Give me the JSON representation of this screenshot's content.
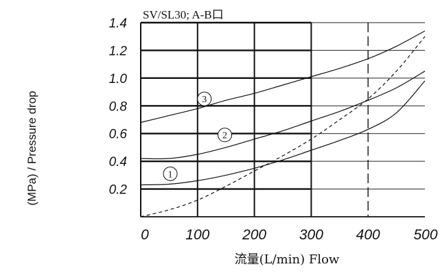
{
  "chart_data": {
    "type": "line",
    "title": "SV/SL30; A-B口",
    "xlabel": "流量(L/min) Flow",
    "ylabel": "(MPa) / Pressure drop",
    "xlim": [
      0,
      500
    ],
    "ylim": [
      0,
      1.4
    ],
    "x_ticks": [
      "0",
      "100",
      "200",
      "300",
      "400",
      "500"
    ],
    "y_ticks": [
      "0.2",
      "0.4",
      "0.6",
      "0.8",
      "1.0",
      "1.2",
      "1.4"
    ],
    "grid": true,
    "series": [
      {
        "name": "1",
        "style": "solid",
        "x": [
          0,
          50,
          100,
          150,
          200,
          250,
          300,
          350,
          400,
          450,
          500
        ],
        "y": [
          0.23,
          0.235,
          0.26,
          0.3,
          0.35,
          0.41,
          0.48,
          0.55,
          0.63,
          0.75,
          0.98
        ]
      },
      {
        "name": "2",
        "style": "solid",
        "x": [
          0,
          50,
          100,
          150,
          200,
          250,
          300,
          350,
          400,
          450,
          500
        ],
        "y": [
          0.42,
          0.42,
          0.45,
          0.5,
          0.56,
          0.62,
          0.69,
          0.76,
          0.84,
          0.93,
          1.05
        ]
      },
      {
        "name": "3",
        "style": "solid",
        "x": [
          0,
          50,
          100,
          150,
          200,
          250,
          300,
          350,
          400,
          450,
          500
        ],
        "y": [
          0.68,
          0.73,
          0.78,
          0.84,
          0.89,
          0.95,
          1.01,
          1.07,
          1.14,
          1.23,
          1.34
        ]
      },
      {
        "name": "",
        "style": "dashed",
        "x": [
          0,
          50,
          100,
          150,
          200,
          250,
          300,
          350,
          400,
          450,
          500
        ],
        "y": [
          0.0,
          0.05,
          0.12,
          0.22,
          0.33,
          0.44,
          0.56,
          0.7,
          0.85,
          1.05,
          1.3
        ]
      }
    ],
    "vertical_dashed_line_x": 400,
    "curve_labels": [
      {
        "text": "1",
        "x": 52,
        "y": 0.31
      },
      {
        "text": "2",
        "x": 148,
        "y": 0.59
      },
      {
        "text": "3",
        "x": 112,
        "y": 0.85
      }
    ]
  }
}
